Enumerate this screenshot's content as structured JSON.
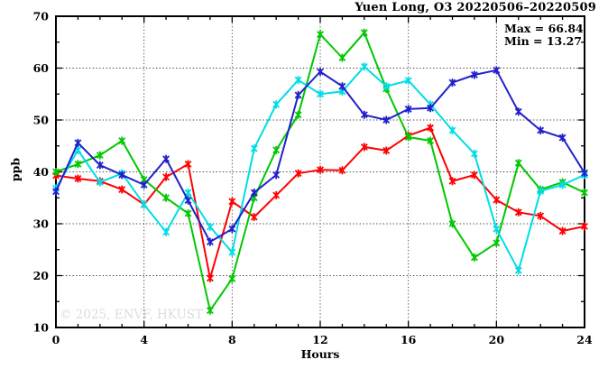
{
  "title": "Yuen Long, O3 20220506–20220509",
  "annotations": {
    "max_label": "Max = 66.84",
    "min_label": "Min = 13.27"
  },
  "watermark": "© 2025, ENVF, HKUST",
  "chart_data": {
    "type": "line",
    "title": "Yuen Long, O3 20220506–20220509",
    "xlabel": "Hours",
    "ylabel": "ppb",
    "xlim": [
      0,
      24
    ],
    "ylim": [
      10,
      70
    ],
    "xticks": [
      0,
      4,
      8,
      12,
      16,
      20,
      24
    ],
    "yticks": [
      10,
      20,
      30,
      40,
      50,
      60,
      70
    ],
    "x_minor_step": 1,
    "y_minor_step": 5,
    "grid": "dotted lines at interior major ticks, both axes",
    "legend_position": "none",
    "stat_max": 66.84,
    "stat_min": 13.27,
    "x": [
      0,
      1,
      2,
      3,
      4,
      5,
      6,
      7,
      8,
      9,
      10,
      11,
      12,
      13,
      14,
      15,
      16,
      17,
      18,
      19,
      20,
      21,
      22,
      23,
      24
    ],
    "series": [
      {
        "name": "red-day",
        "color": "#ff0000",
        "values": [
          39.3,
          38.7,
          38.2,
          36.6,
          33.7,
          39.0,
          41.5,
          19.5,
          34.3,
          31.3,
          35.5,
          39.7,
          40.4,
          40.3,
          44.8,
          44.1,
          47.0,
          48.5,
          38.2,
          39.4,
          34.6,
          32.2,
          31.5,
          28.6,
          29.5
        ]
      },
      {
        "name": "green-day",
        "color": "#00c800",
        "values": [
          40.0,
          41.5,
          43.2,
          46.0,
          38.5,
          35.0,
          32.0,
          13.27,
          19.4,
          35.0,
          44.2,
          51.0,
          66.5,
          62.0,
          66.84,
          56.0,
          46.7,
          46.0,
          30.0,
          23.5,
          26.3,
          41.7,
          36.6,
          38.0,
          36.0
        ]
      },
      {
        "name": "cyan-day",
        "color": "#00dde6",
        "values": [
          36.8,
          44.2,
          38.0,
          39.7,
          33.7,
          28.4,
          36.0,
          29.4,
          24.5,
          44.5,
          53.0,
          57.7,
          55.0,
          55.5,
          60.3,
          56.5,
          57.6,
          53.0,
          48.0,
          43.5,
          29.0,
          21.0,
          36.3,
          37.5,
          39.4
        ]
      },
      {
        "name": "blue-day",
        "color": "#2020cc",
        "values": [
          36.2,
          45.6,
          41.3,
          39.4,
          37.5,
          42.5,
          34.5,
          26.5,
          29.0,
          36.0,
          39.4,
          54.8,
          59.3,
          56.5,
          51.0,
          50.0,
          52.1,
          52.3,
          57.2,
          58.7,
          59.6,
          51.6,
          48.0,
          46.6,
          39.8
        ]
      }
    ]
  }
}
